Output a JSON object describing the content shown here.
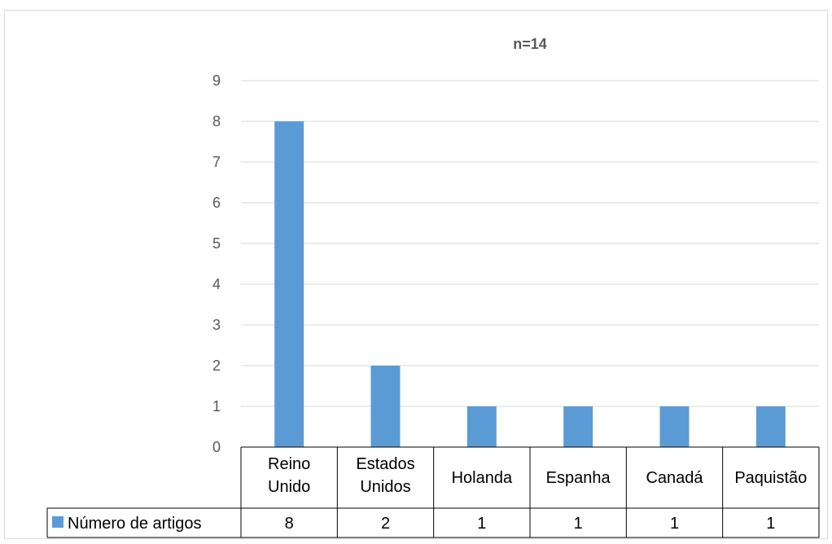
{
  "chart_data": {
    "type": "bar",
    "title": "n=14",
    "categories": [
      "Reino\nUnido",
      "Estados\nUnidos",
      "Holanda",
      "Espanha",
      "Canadá",
      "Paquistão"
    ],
    "series": [
      {
        "name": "Número de artigos",
        "values": [
          8,
          2,
          1,
          1,
          1,
          1
        ],
        "color": "#5b9bd5"
      }
    ],
    "ylim": [
      0,
      9
    ],
    "yticks": [
      0,
      1,
      2,
      3,
      4,
      5,
      6,
      7,
      8,
      9
    ],
    "grid": true,
    "legend_placement": "data-table",
    "data_table": true
  }
}
